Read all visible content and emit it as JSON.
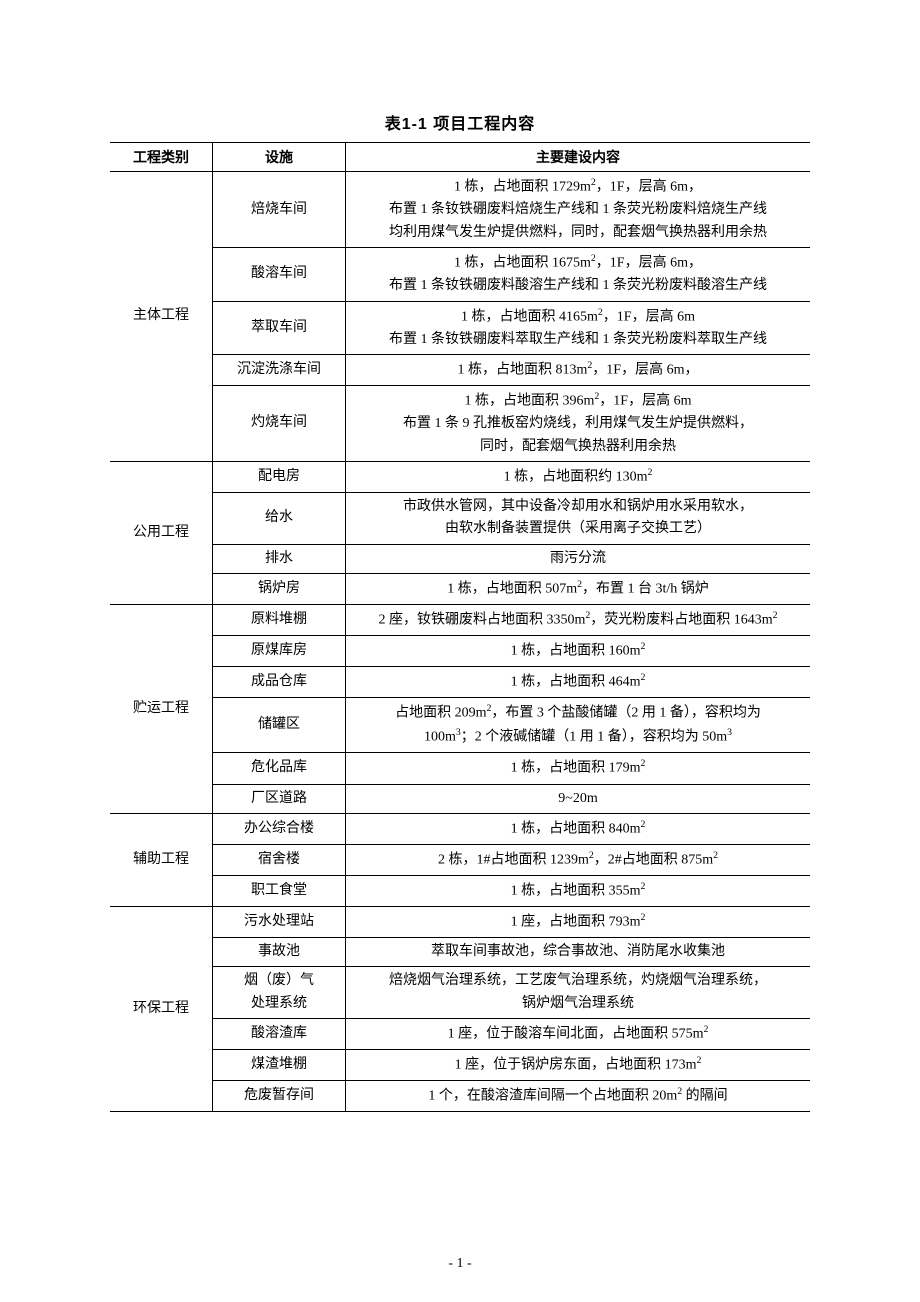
{
  "table": {
    "caption": "表1-1 项目工程内容",
    "headers": [
      "工程类别",
      "设施",
      "主要建设内容"
    ],
    "categories": [
      {
        "name": "主体工程",
        "rows": [
          {
            "facility": "焙烧车间",
            "desc_html": "1 栋，占地面积 1729m<sup>2</sup>，1F，层高 6m，<br>布置 1 条钕铁硼废料焙烧生产线和 1 条荧光粉废料焙烧生产线<br>均利用煤气发生炉提供燃料，同时，配套烟气换热器利用余热"
          },
          {
            "facility": "酸溶车间",
            "desc_html": "1 栋，占地面积 1675m<sup>2</sup>，1F，层高 6m，<br>布置 1 条钕铁硼废料酸溶生产线和 1 条荧光粉废料酸溶生产线"
          },
          {
            "facility": "萃取车间",
            "desc_html": "1 栋，占地面积 4165m<sup>2</sup>，1F，层高 6m<br>布置 1 条钕铁硼废料萃取生产线和 1 条荧光粉废料萃取生产线"
          },
          {
            "facility": "沉淀洗涤车间",
            "desc_html": "1 栋，占地面积 813m<sup>2</sup>，1F，层高 6m，"
          },
          {
            "facility": "灼烧车间",
            "desc_html": "1 栋，占地面积 396m<sup>2</sup>，1F，层高 6m<br>布置 1 条 9 孔推板窑灼烧线，利用煤气发生炉提供燃料，<br>同时，配套烟气换热器利用余热"
          }
        ]
      },
      {
        "name": "公用工程",
        "rows": [
          {
            "facility": "配电房",
            "desc_html": "1 栋，占地面积约 130m<sup>2</sup>"
          },
          {
            "facility": "给水",
            "desc_html": "市政供水管网，其中设备冷却用水和锅炉用水采用软水，<br>由软水制备装置提供（采用离子交换工艺）"
          },
          {
            "facility": "排水",
            "desc_html": "雨污分流"
          },
          {
            "facility": "锅炉房",
            "desc_html": "1 栋，占地面积 507m<sup>2</sup>，布置 1 台 3t/h 锅炉"
          }
        ]
      },
      {
        "name": "贮运工程",
        "rows": [
          {
            "facility": "原料堆棚",
            "desc_html": "2 座，钕铁硼废料占地面积 3350m<sup>2</sup>，荧光粉废料占地面积 1643m<sup>2</sup>"
          },
          {
            "facility": "原煤库房",
            "desc_html": "1 栋，占地面积 160m<sup>2</sup>"
          },
          {
            "facility": "成品仓库",
            "desc_html": "1 栋，占地面积 464m<sup>2</sup>"
          },
          {
            "facility": "储罐区",
            "desc_html": "占地面积 209m<sup>2</sup>，布置 3 个盐酸储罐（2 用 1 备），容积均为<br>100m<sup>3</sup>；2 个液碱储罐（1 用 1 备），容积均为 50m<sup>3</sup>"
          },
          {
            "facility": "危化品库",
            "desc_html": "1 栋，占地面积 179m<sup>2</sup>"
          },
          {
            "facility": "厂区道路",
            "desc_html": "9~20m"
          }
        ]
      },
      {
        "name": "辅助工程",
        "rows": [
          {
            "facility": "办公综合楼",
            "desc_html": "1 栋，占地面积 840m<sup>2</sup>"
          },
          {
            "facility": "宿舍楼",
            "desc_html": "2 栋，1#占地面积 1239m<sup>2</sup>，2#占地面积 875m<sup>2</sup>"
          },
          {
            "facility": "职工食堂",
            "desc_html": "1 栋，占地面积 355m<sup>2</sup>"
          }
        ]
      },
      {
        "name": "环保工程",
        "rows": [
          {
            "facility": "污水处理站",
            "desc_html": "1 座，占地面积 793m<sup>2</sup>"
          },
          {
            "facility": "事故池",
            "desc_html": "萃取车间事故池，综合事故池、消防尾水收集池"
          },
          {
            "facility": "烟（废）气<br>处理系统",
            "desc_html": "焙烧烟气治理系统，工艺废气治理系统，灼烧烟气治理系统，<br>锅炉烟气治理系统"
          },
          {
            "facility": "酸溶渣库",
            "desc_html": "1 座，位于酸溶车间北面，占地面积 575m<sup>2</sup>"
          },
          {
            "facility": "煤渣堆棚",
            "desc_html": "1 座，位于锅炉房东面，占地面积 173m<sup>2</sup>"
          },
          {
            "facility": "危废暂存间",
            "desc_html": "1 个，在酸溶渣库间隔一个占地面积 20m<sup>2</sup> 的隔间"
          }
        ]
      }
    ]
  },
  "page": {
    "number": "- 1 -"
  },
  "style": {
    "font_body": "SimSun",
    "font_heading": "SimHei",
    "font_size_body": 14,
    "font_size_caption": 16,
    "border_color": "#000000",
    "background_color": "#ffffff",
    "text_color": "#000000",
    "outer_rule_width": 1.5,
    "inner_rule_width": 1.0
  }
}
